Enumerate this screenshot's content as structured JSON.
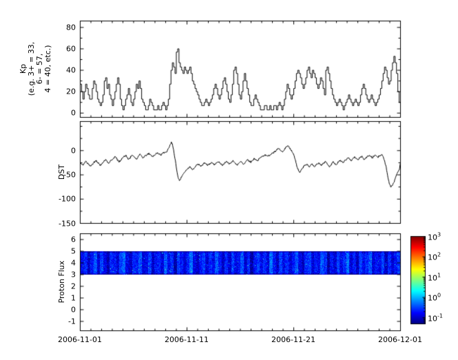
{
  "figure": {
    "background": "#ffffff",
    "x_start": "2006-11-01",
    "x_end": "2006-12-01",
    "x_tick_labels": [
      "2006-11-01",
      "2006-11-11",
      "2006-11-21",
      "2006-12-01"
    ]
  },
  "chart_data": [
    {
      "type": "line",
      "name": "kp-index",
      "ylabel_lines": [
        "Kp",
        "(e.g. 3+ = 33,",
        "6- = 57,",
        "4 = 40, etc.)"
      ],
      "ylim": [
        -4,
        86
      ],
      "yticks": [
        0,
        20,
        40,
        60,
        80
      ],
      "line_color": "#000000",
      "step": true,
      "samples_per_day": 8,
      "x_days": 30,
      "values": [
        27,
        20,
        13,
        20,
        27,
        23,
        17,
        13,
        13,
        23,
        30,
        27,
        20,
        13,
        10,
        7,
        10,
        17,
        30,
        33,
        23,
        27,
        17,
        13,
        7,
        13,
        20,
        27,
        33,
        27,
        13,
        7,
        3,
        7,
        13,
        17,
        23,
        17,
        10,
        7,
        13,
        20,
        27,
        23,
        30,
        23,
        13,
        10,
        7,
        3,
        3,
        7,
        13,
        10,
        7,
        3,
        3,
        3,
        7,
        3,
        3,
        7,
        10,
        7,
        3,
        7,
        13,
        27,
        40,
        47,
        43,
        37,
        57,
        60,
        47,
        43,
        40,
        37,
        43,
        40,
        37,
        40,
        43,
        37,
        30,
        27,
        23,
        20,
        17,
        13,
        10,
        7,
        7,
        10,
        13,
        10,
        7,
        10,
        13,
        17,
        23,
        27,
        23,
        17,
        13,
        17,
        23,
        30,
        33,
        27,
        20,
        13,
        10,
        17,
        27,
        40,
        43,
        37,
        27,
        17,
        13,
        20,
        30,
        37,
        30,
        23,
        17,
        10,
        7,
        7,
        13,
        17,
        13,
        10,
        7,
        3,
        3,
        3,
        7,
        7,
        3,
        3,
        7,
        3,
        3,
        7,
        7,
        3,
        7,
        10,
        7,
        3,
        7,
        13,
        20,
        27,
        23,
        17,
        13,
        17,
        23,
        30,
        37,
        40,
        37,
        33,
        27,
        23,
        27,
        33,
        40,
        43,
        37,
        33,
        40,
        37,
        33,
        27,
        23,
        27,
        33,
        30,
        23,
        17,
        40,
        43,
        37,
        30,
        23,
        17,
        13,
        10,
        7,
        10,
        13,
        10,
        7,
        3,
        7,
        10,
        13,
        17,
        13,
        10,
        7,
        10,
        13,
        10,
        7,
        10,
        17,
        23,
        27,
        23,
        17,
        13,
        10,
        13,
        17,
        13,
        10,
        7,
        10,
        13,
        17,
        23,
        30,
        37,
        43,
        40,
        33,
        27,
        30,
        40,
        47,
        53,
        47,
        37,
        20,
        10
      ]
    },
    {
      "type": "line",
      "name": "dst-index",
      "ylabel": "DST",
      "ylim": [
        -150,
        60
      ],
      "yticks": [
        -150,
        -100,
        -50,
        0
      ],
      "line_color": "#000000",
      "step": false,
      "samples_per_day": 8,
      "x_days": 30,
      "values": [
        -25,
        -28,
        -30,
        -26,
        -22,
        -25,
        -28,
        -30,
        -32,
        -28,
        -25,
        -22,
        -20,
        -24,
        -27,
        -30,
        -28,
        -25,
        -20,
        -18,
        -22,
        -26,
        -24,
        -20,
        -18,
        -15,
        -12,
        -16,
        -20,
        -24,
        -20,
        -16,
        -14,
        -12,
        -10,
        -14,
        -18,
        -16,
        -12,
        -10,
        -12,
        -15,
        -18,
        -14,
        -10,
        -8,
        -12,
        -15,
        -12,
        -10,
        -8,
        -6,
        -8,
        -10,
        -12,
        -10,
        -8,
        -6,
        -5,
        -7,
        -9,
        -7,
        -5,
        -4,
        -3,
        0,
        5,
        12,
        18,
        10,
        -5,
        -20,
        -40,
        -55,
        -62,
        -58,
        -52,
        -48,
        -44,
        -40,
        -38,
        -35,
        -33,
        -36,
        -39,
        -36,
        -33,
        -30,
        -28,
        -30,
        -33,
        -30,
        -27,
        -25,
        -28,
        -31,
        -29,
        -26,
        -24,
        -27,
        -30,
        -28,
        -25,
        -23,
        -25,
        -28,
        -31,
        -28,
        -24,
        -22,
        -25,
        -28,
        -26,
        -23,
        -20,
        -24,
        -28,
        -30,
        -27,
        -24,
        -22,
        -25,
        -28,
        -25,
        -21,
        -18,
        -21,
        -24,
        -22,
        -19,
        -16,
        -18,
        -21,
        -19,
        -16,
        -14,
        -12,
        -10,
        -8,
        -10,
        -12,
        -10,
        -8,
        -6,
        -5,
        -3,
        -1,
        2,
        4,
        2,
        -1,
        -3,
        0,
        4,
        8,
        10,
        6,
        2,
        -2,
        -6,
        -15,
        -25,
        -35,
        -42,
        -45,
        -40,
        -36,
        -32,
        -30,
        -28,
        -31,
        -34,
        -30,
        -27,
        -30,
        -33,
        -30,
        -27,
        -25,
        -28,
        -31,
        -28,
        -25,
        -22,
        -25,
        -30,
        -34,
        -30,
        -26,
        -23,
        -26,
        -29,
        -26,
        -23,
        -20,
        -22,
        -25,
        -22,
        -19,
        -17,
        -15,
        -18,
        -21,
        -18,
        -15,
        -13,
        -16,
        -19,
        -17,
        -14,
        -12,
        -15,
        -18,
        -16,
        -13,
        -11,
        -10,
        -12,
        -15,
        -12,
        -9,
        -11,
        -14,
        -12,
        -10,
        -8,
        -12,
        -20,
        -30,
        -45,
        -60,
        -70,
        -75,
        -72,
        -66,
        -58,
        -50,
        -44,
        -40,
        -25
      ]
    },
    {
      "type": "heatmap",
      "name": "proton-flux-spectrogram",
      "ylabel": "Proton Flux",
      "ylim": [
        -1.8,
        6.5
      ],
      "yticks": [
        -1,
        0,
        1,
        2,
        3,
        4,
        5,
        6
      ],
      "band_y": [
        3,
        5
      ],
      "colormap": "jet",
      "log_color_range": [
        -1.3,
        3
      ],
      "column_log10_flux": [
        -0.8,
        -0.6,
        -1.0,
        -0.7,
        -0.4,
        -0.9,
        -0.5,
        -0.8,
        -1.1,
        -0.6,
        -0.7,
        -0.9,
        -0.5,
        -0.3,
        -0.8,
        -1.0,
        -0.6,
        -0.7,
        -0.4,
        -0.9,
        -0.8,
        -0.5,
        -1.0,
        -0.7,
        -0.6,
        -0.9,
        -0.4,
        -0.8,
        -0.6,
        -1.1,
        -0.5,
        -0.7,
        -0.9,
        -0.6,
        -0.3,
        -0.8,
        -1.0,
        -0.7,
        -0.5,
        -0.9,
        -0.6,
        -0.8,
        -0.4,
        -0.7,
        -1.0,
        -0.6,
        -0.9,
        -0.5,
        -0.8,
        -0.7,
        -0.4,
        -0.9,
        -0.6,
        -1.1,
        -0.7,
        -0.5,
        -0.8,
        -0.6,
        -0.9,
        -0.3,
        -0.7,
        -1.0,
        -0.5,
        -0.8,
        -0.6,
        -0.9,
        -0.7,
        -0.4,
        -0.8,
        -1.0,
        -0.6,
        -0.5,
        -0.9,
        -0.7,
        -0.8,
        -0.4,
        -0.6,
        -1.1,
        -0.7,
        -0.9,
        -0.5,
        -0.8,
        -0.6,
        -0.3,
        -0.9,
        -0.7,
        -1.0,
        -0.5,
        -0.8,
        -0.6,
        -0.4,
        -0.9,
        -0.7,
        -0.8,
        -0.5,
        -1.0,
        -0.6,
        -0.9,
        -0.7,
        -0.5
      ],
      "colorbar": {
        "base": "10",
        "exponents": [
          3,
          2,
          1,
          0,
          -1
        ]
      }
    }
  ]
}
